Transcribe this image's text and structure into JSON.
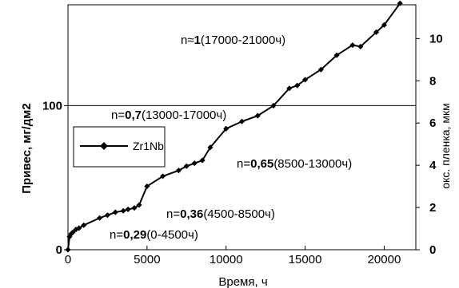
{
  "chart_data": {
    "type": "line",
    "xlabel": "Время, ч",
    "ylabel": "Привес, мг/дм2",
    "y2label": "окс. пленка, мкм",
    "xlim": [
      0,
      22000
    ],
    "ylim": [
      0,
      170
    ],
    "y2lim": [
      0,
      11.6
    ],
    "x_ticks": [
      "0",
      "5000",
      "10000",
      "15000",
      "20000"
    ],
    "x_tick_values": [
      0,
      5000,
      10000,
      15000,
      20000
    ],
    "y_ticks": [
      "0",
      "100"
    ],
    "y_tick_values": [
      0,
      100
    ],
    "y2_ticks": [
      "0",
      "2",
      "4",
      "6",
      "8",
      "10"
    ],
    "y2_tick_values": [
      0,
      2,
      4,
      6,
      8,
      10
    ],
    "hline": 100,
    "grid": false,
    "legend_position": "left",
    "series": [
      {
        "name": "Zr1Nb",
        "x": [
          0,
          100,
          200,
          300,
          500,
          700,
          1000,
          2000,
          2500,
          3000,
          3500,
          3800,
          4200,
          4500,
          5000,
          6000,
          7000,
          7500,
          8000,
          8500,
          9000,
          10000,
          11000,
          12000,
          13000,
          14000,
          14500,
          15000,
          16000,
          17000,
          18000,
          18500,
          19500,
          20000,
          21000
        ],
        "y": [
          0,
          9,
          11,
          12,
          14,
          15,
          17,
          22,
          24,
          26,
          27,
          28,
          29,
          31,
          44,
          51,
          55,
          58,
          60,
          62,
          71,
          84,
          89,
          93,
          100,
          112,
          114,
          118,
          125,
          135,
          142,
          141,
          151,
          156,
          171
        ]
      }
    ],
    "annotations": [
      {
        "prefix": "n=",
        "value": "0,29",
        "range": "(0-4500ч)"
      },
      {
        "prefix": "n=",
        "value": "0,36",
        "range": "(4500-8500ч)"
      },
      {
        "prefix": "n=",
        "value": "0,65",
        "range": "(8500-13000ч)"
      },
      {
        "prefix": "n=",
        "value": "0,7",
        "range": "(13000-17000ч)"
      },
      {
        "prefix": "n≈",
        "value": "1",
        "range": "(17000-21000ч)"
      }
    ]
  }
}
